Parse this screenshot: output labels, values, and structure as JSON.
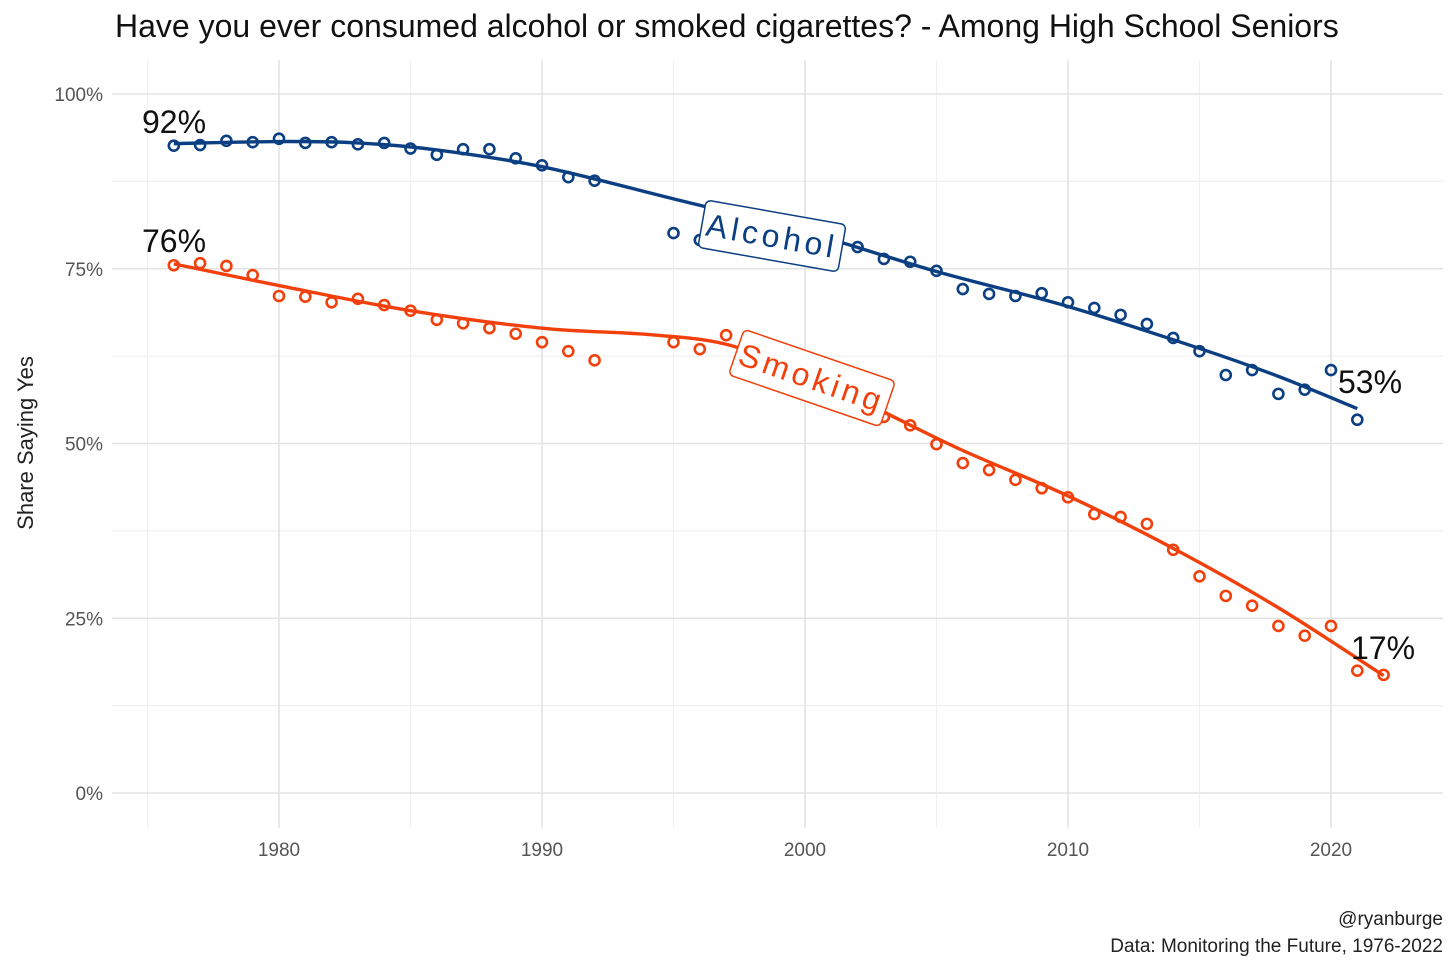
{
  "chart_data": {
    "type": "scatter",
    "title": "Have you ever consumed alcohol or smoked cigarettes? - Among High School Seniors",
    "xlabel": "",
    "ylabel": "Share Saying Yes",
    "xlim": [
      1974,
      2024
    ],
    "ylim": [
      0,
      100
    ],
    "x_ticks": [
      1980,
      1990,
      2000,
      2010,
      2020
    ],
    "x_tick_labels": [
      "1980",
      "1990",
      "2000",
      "2010",
      "2020"
    ],
    "y_ticks": [
      0,
      25,
      50,
      75,
      100
    ],
    "y_tick_labels": [
      "0%",
      "25%",
      "50%",
      "75%",
      "100%"
    ],
    "grid": true,
    "caption": [
      "@ryanburge",
      "Data: Monitoring the Future, 1976-2022"
    ],
    "series": [
      {
        "name": "Alcohol",
        "color": "#0b3f82",
        "start_label": "92%",
        "end_label": "53%",
        "x": [
          1976,
          1977,
          1978,
          1979,
          1980,
          1981,
          1982,
          1983,
          1984,
          1985,
          1986,
          1987,
          1988,
          1989,
          1990,
          1991,
          1992,
          1995,
          1996,
          2002,
          2003,
          2004,
          2005,
          2006,
          2007,
          2008,
          2009,
          2010,
          2011,
          2012,
          2013,
          2014,
          2015,
          2016,
          2017,
          2018,
          2019,
          2020,
          2021
        ],
        "values": [
          92.6,
          92.7,
          93.3,
          93.1,
          93.6,
          93.0,
          93.1,
          92.8,
          93.0,
          92.2,
          91.3,
          92.1,
          92.1,
          90.8,
          89.8,
          88.1,
          87.6,
          80.1,
          79.1,
          78.1,
          76.4,
          76.0,
          74.7,
          72.1,
          71.4,
          71.1,
          71.5,
          70.2,
          69.4,
          68.4,
          67.1,
          65.1,
          63.2,
          59.8,
          60.5,
          57.1,
          57.7,
          60.5,
          53.4
        ],
        "trend_x": [
          1976,
          1980,
          1983,
          1986,
          1990,
          1995,
          2000,
          2005,
          2010,
          2015,
          2018,
          2021
        ],
        "trend_values": [
          92.9,
          93.2,
          93.0,
          92.0,
          89.6,
          85.0,
          80.3,
          74.6,
          69.6,
          63.6,
          59.6,
          55.0
        ]
      },
      {
        "name": "Smoking",
        "color": "#f2400c",
        "start_label": "76%",
        "end_label": "17%",
        "x": [
          1976,
          1977,
          1978,
          1979,
          1980,
          1981,
          1982,
          1983,
          1984,
          1985,
          1986,
          1987,
          1988,
          1989,
          1990,
          1991,
          1992,
          1995,
          1996,
          1997,
          2003,
          2004,
          2005,
          2006,
          2007,
          2008,
          2009,
          2010,
          2011,
          2012,
          2013,
          2014,
          2015,
          2016,
          2017,
          2018,
          2019,
          2020,
          2021,
          2022
        ],
        "values": [
          75.5,
          75.8,
          75.4,
          74.1,
          71.1,
          71.0,
          70.2,
          70.7,
          69.8,
          69.0,
          67.7,
          67.2,
          66.5,
          65.7,
          64.5,
          63.2,
          61.9,
          64.5,
          63.5,
          65.5,
          53.8,
          52.6,
          49.9,
          47.2,
          46.2,
          44.8,
          43.6,
          42.3,
          39.9,
          39.5,
          38.5,
          34.8,
          31.0,
          28.2,
          26.8,
          23.9,
          22.5,
          23.9,
          17.5,
          16.9
        ],
        "trend_x": [
          1976,
          1980,
          1985,
          1990,
          1994,
          1997,
          2000,
          2003,
          2006,
          2010,
          2014,
          2018,
          2022
        ],
        "trend_values": [
          75.7,
          72.6,
          69.0,
          66.5,
          65.6,
          64.2,
          60.0,
          54.5,
          49.0,
          42.5,
          35.0,
          26.5,
          16.8
        ]
      }
    ]
  }
}
